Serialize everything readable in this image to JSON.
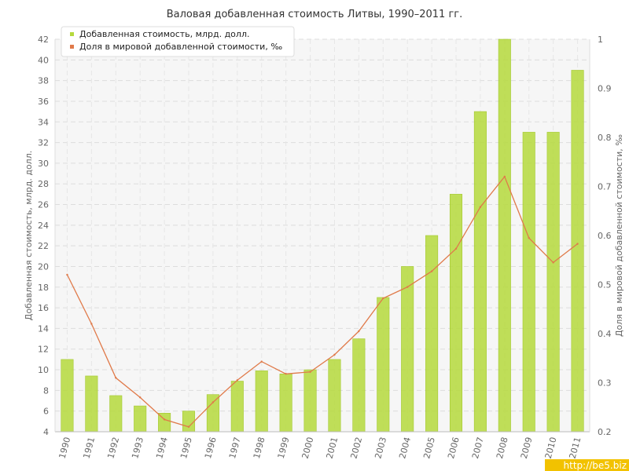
{
  "chart_data": {
    "type": "bar",
    "title": "Валовая добавленная стоимость Литвы, 1990–2011 гг.",
    "categories": [
      "1990",
      "1991",
      "1992",
      "1993",
      "1994",
      "1995",
      "1996",
      "1997",
      "1998",
      "1999",
      "2000",
      "2001",
      "2002",
      "2003",
      "2004",
      "2005",
      "2006",
      "2007",
      "2008",
      "2009",
      "2010",
      "2011"
    ],
    "series": [
      {
        "name": "Добавленная стоимость, млрд. долл.",
        "type": "bar",
        "axis": "left",
        "color": "#b5d93c",
        "values": [
          11.0,
          9.4,
          7.5,
          6.5,
          5.8,
          6.0,
          7.6,
          8.9,
          9.9,
          9.6,
          10.0,
          11.0,
          13.0,
          17.0,
          20.0,
          23.0,
          27.0,
          35.0,
          42.0,
          33.0,
          33.0,
          39.0
        ]
      },
      {
        "name": "Доля в мировой добавленной стоимости, ‰",
        "type": "line",
        "axis": "right",
        "color": "#e07a4a",
        "values": [
          0.52,
          0.42,
          0.31,
          0.27,
          0.225,
          0.21,
          0.26,
          0.305,
          0.343,
          0.318,
          0.322,
          0.357,
          0.405,
          0.472,
          0.495,
          0.527,
          0.573,
          0.658,
          0.72,
          0.595,
          0.545,
          0.583
        ]
      }
    ],
    "ylabel": "Добавленная стоимость, млрд. долл.",
    "ylabel_right": "Доля в мировой добавленной стоимости, ‰",
    "xlabel": "",
    "ylim": [
      4,
      42
    ],
    "ylim_right": [
      0.2,
      1.0
    ],
    "yticks": [
      "4",
      "6",
      "8",
      "10",
      "12",
      "14",
      "16",
      "18",
      "20",
      "22",
      "24",
      "26",
      "28",
      "30",
      "32",
      "34",
      "36",
      "38",
      "40",
      "42"
    ],
    "yticks_right": [
      "0.2",
      "0.3",
      "0.4",
      "0.5",
      "0.6",
      "0.7",
      "0.8",
      "0.9",
      "1"
    ],
    "grid": true,
    "legend_position": "top-left"
  },
  "watermark": "http://be5.biz"
}
